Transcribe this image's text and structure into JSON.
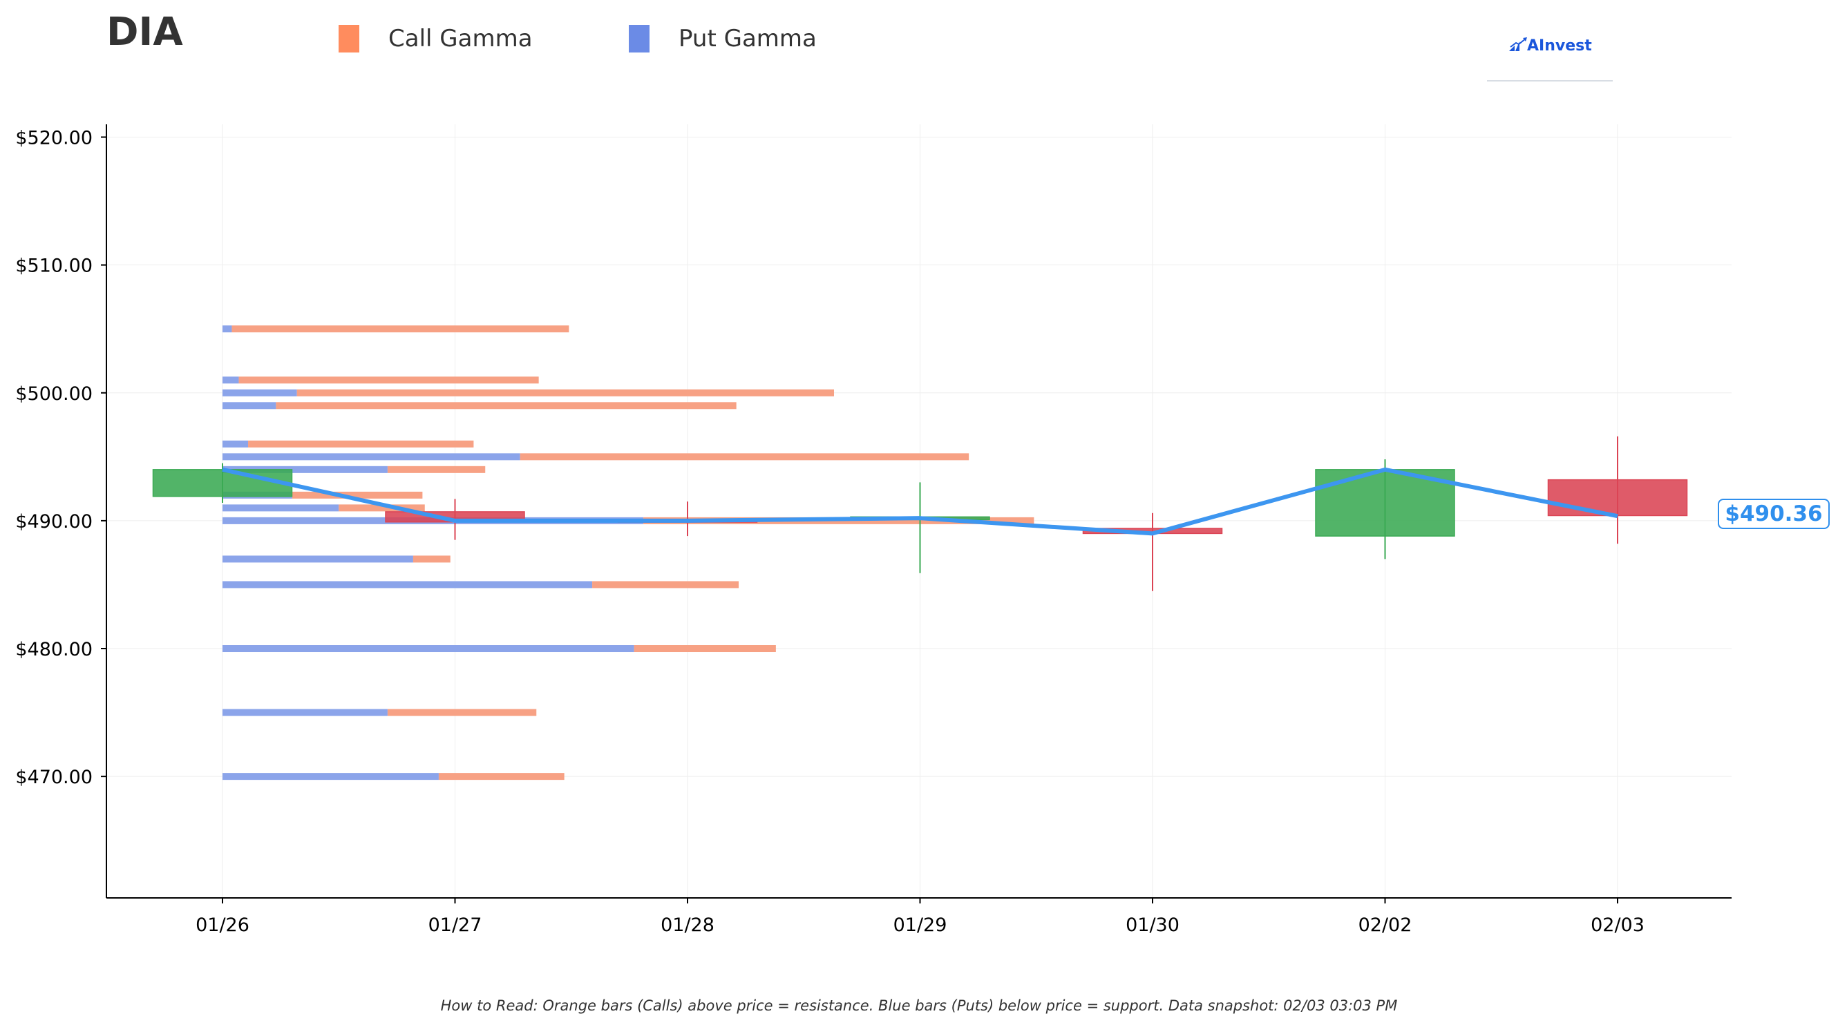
{
  "header": {
    "ticker": "DIA",
    "legend": [
      {
        "label": "Call Gamma",
        "color": "#ff8c5e"
      },
      {
        "label": "Put Gamma",
        "color": "#6b8be6"
      }
    ],
    "brand": "AInvest"
  },
  "footnote": "How to Read: Orange bars (Calls) above price = resistance. Blue bars (Puts) below price = support. Data snapshot: 02/03 03:03 PM",
  "price_tag": "$490.36",
  "chart_data": {
    "type": "candlestick",
    "title": "DIA",
    "xlabel": "",
    "ylabel": "",
    "ylim": [
      460.5,
      521
    ],
    "yticks": [
      470,
      480,
      490,
      500,
      510,
      520
    ],
    "ytick_labels": [
      "$470.00",
      "$480.00",
      "$490.00",
      "$500.00",
      "$510.00",
      "$520.00"
    ],
    "categories": [
      "01/26",
      "01/27",
      "01/28",
      "01/29",
      "01/30",
      "02/02",
      "02/03"
    ],
    "candles": [
      {
        "date": "01/26",
        "open": 491.9,
        "high": 494.5,
        "low": 491.4,
        "close": 494.0
      },
      {
        "date": "01/27",
        "open": 490.7,
        "high": 491.7,
        "low": 488.5,
        "close": 489.9
      },
      {
        "date": "01/28",
        "open": 490.1,
        "high": 491.5,
        "low": 488.8,
        "close": 490.0
      },
      {
        "date": "01/29",
        "open": 490.1,
        "high": 493.0,
        "low": 485.9,
        "close": 490.3
      },
      {
        "date": "01/30",
        "open": 489.4,
        "high": 490.6,
        "low": 484.5,
        "close": 489.0
      },
      {
        "date": "02/02",
        "open": 488.8,
        "high": 494.8,
        "low": 487.0,
        "close": 494.0
      },
      {
        "date": "02/03",
        "open": 493.2,
        "high": 496.6,
        "low": 488.2,
        "close": 490.4
      }
    ],
    "close_line": {
      "color": "#3d96f0",
      "values": [
        494.0,
        490.0,
        490.0,
        490.2,
        489.0,
        494.0,
        490.36
      ]
    },
    "gamma_levels": {
      "x_unit": "days from 01/26",
      "call_color": "#f7a184",
      "put_color": "#8ba4ea",
      "levels": [
        {
          "strike": 505,
          "put": 0.04,
          "call": 1.45
        },
        {
          "strike": 501,
          "put": 0.07,
          "call": 1.29
        },
        {
          "strike": 500,
          "put": 0.32,
          "call": 2.31
        },
        {
          "strike": 499,
          "put": 0.23,
          "call": 1.98
        },
        {
          "strike": 496,
          "put": 0.11,
          "call": 0.97
        },
        {
          "strike": 495,
          "put": 1.28,
          "call": 1.93
        },
        {
          "strike": 494,
          "put": 0.71,
          "call": 0.42
        },
        {
          "strike": 492,
          "put": 0.3,
          "call": 0.56
        },
        {
          "strike": 491,
          "put": 0.5,
          "call": 0.37
        },
        {
          "strike": 490,
          "put": 1.81,
          "call": 1.68
        },
        {
          "strike": 487,
          "put": 0.82,
          "call": 0.16
        },
        {
          "strike": 485,
          "put": 1.59,
          "call": 0.63
        },
        {
          "strike": 480,
          "put": 1.77,
          "call": 0.61
        },
        {
          "strike": 475,
          "put": 0.71,
          "call": 0.64
        },
        {
          "strike": 470,
          "put": 0.93,
          "call": 0.54
        }
      ]
    },
    "up_color": "#3aaa53",
    "down_color": "#db4454",
    "grid": true,
    "legend_position": "top"
  }
}
